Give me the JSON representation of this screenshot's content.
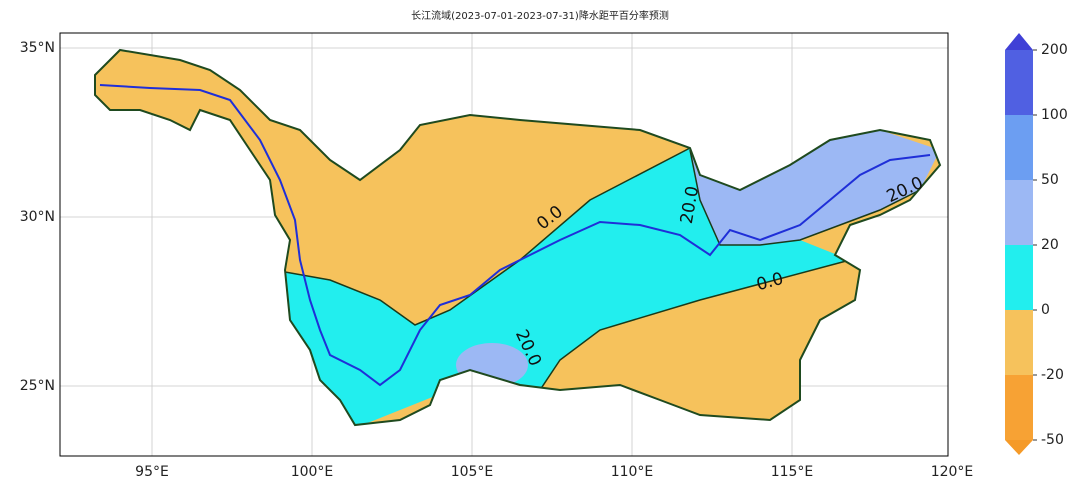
{
  "title": "长江流域(2023-07-01-2023-07-31)降水距平百分率预测",
  "map": {
    "lon_ticks": [
      {
        "value": 95,
        "label": "95°E"
      },
      {
        "value": 100,
        "label": "100°E"
      },
      {
        "value": 105,
        "label": "105°E"
      },
      {
        "value": 110,
        "label": "110°E"
      },
      {
        "value": 115,
        "label": "115°E"
      },
      {
        "value": 120,
        "label": "120°E"
      }
    ],
    "lat_ticks": [
      {
        "value": 35,
        "label": "35°N"
      },
      {
        "value": 30,
        "label": "30°N"
      },
      {
        "value": 25,
        "label": "25°N"
      }
    ],
    "contour_labels": [
      "0.0",
      "20.0",
      "0.0",
      "20.0",
      "20.0"
    ]
  },
  "colorbar": {
    "ticks": [
      -50,
      -20,
      0,
      20,
      50,
      100,
      200
    ],
    "colors": [
      "#f7a234",
      "#f6c25c",
      "#22eeee",
      "#9cb8f4",
      "#6c9ef2",
      "#5060e2"
    ],
    "under_color": "#f59a28",
    "over_color": "#4040d6"
  }
}
